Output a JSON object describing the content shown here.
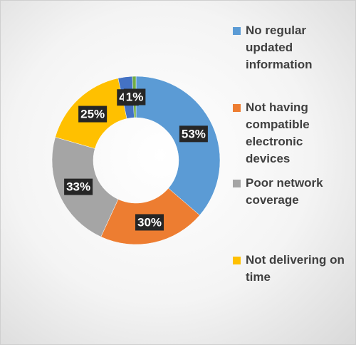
{
  "chart_data": {
    "type": "donut",
    "categories": [
      "No regular updated information",
      "Not having compatible electronic devices",
      "Poor network coverage",
      "Not delivering on time",
      null,
      null
    ],
    "values": [
      53,
      30,
      33,
      25,
      4,
      1
    ],
    "value_labels": [
      "53%",
      "30%",
      "33%",
      "25%",
      "4%",
      "1%"
    ],
    "colors": [
      "#5b9bd5",
      "#ed7d31",
      "#a5a5a5",
      "#ffc000",
      "#4472c4",
      "#70ad47"
    ],
    "legend": "right"
  }
}
